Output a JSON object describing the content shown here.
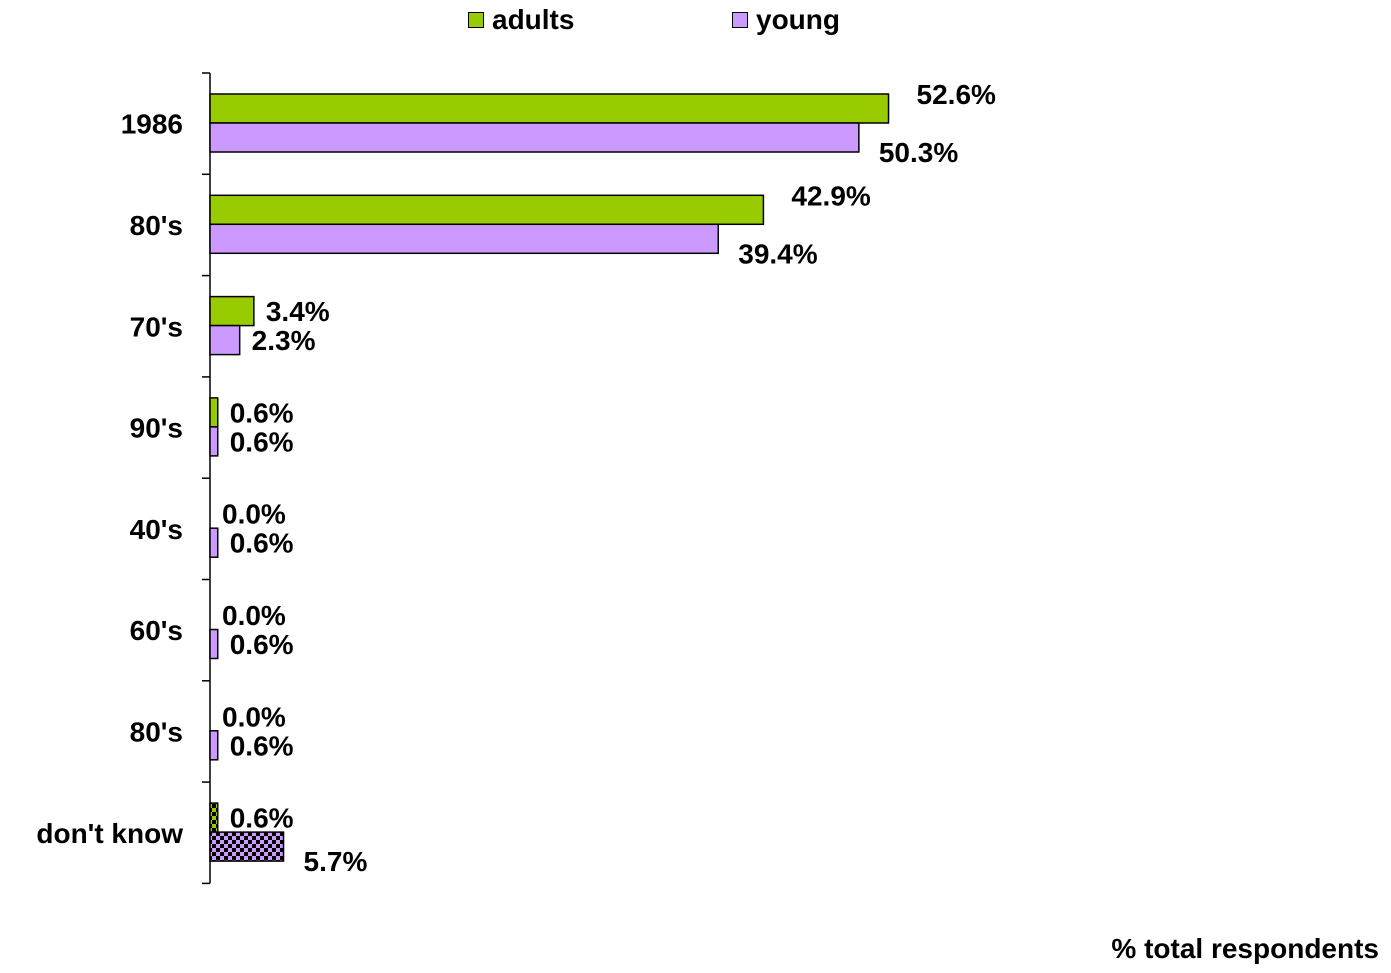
{
  "chart_data": {
    "type": "bar",
    "orientation": "horizontal",
    "categories": [
      "1986",
      "80's",
      "70's",
      "90's",
      "40's",
      "60's",
      "80's",
      "don't know"
    ],
    "series": [
      {
        "name": "adults",
        "color": "#99cc00",
        "values": [
          52.6,
          42.9,
          3.4,
          0.6,
          0.0,
          0.0,
          0.0,
          0.6
        ],
        "labels": [
          "52.6%",
          "42.9%",
          "3.4%",
          "0.6%",
          "0.0%",
          "0.0%",
          "0.0%",
          "0.6%"
        ]
      },
      {
        "name": "young",
        "color": "#cc99ff",
        "values": [
          50.3,
          39.4,
          2.3,
          0.6,
          0.6,
          0.6,
          0.6,
          5.7
        ],
        "labels": [
          "50.3%",
          "39.4%",
          "2.3%",
          "0.6%",
          "0.6%",
          "0.6%",
          "0.6%",
          "5.7%"
        ]
      }
    ],
    "patterned_category": "don't know",
    "xlabel": "% total respondents",
    "xlim": [
      0,
      100
    ],
    "legend_position": "top",
    "grid": false
  }
}
